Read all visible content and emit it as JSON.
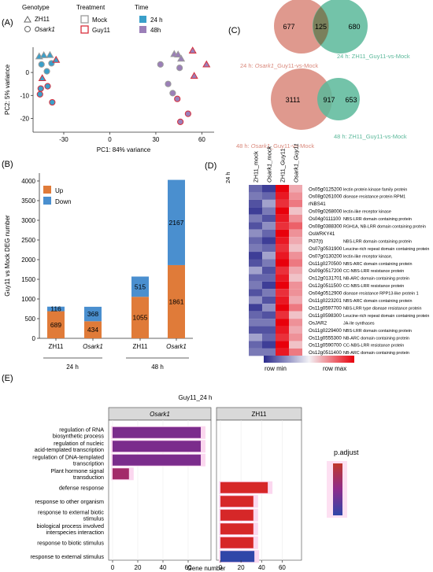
{
  "panels": {
    "A": "(A)",
    "B": "(B)",
    "C": "(C)",
    "D": "(D)",
    "E": "(E)"
  },
  "panelA": {
    "legend": {
      "genotype_title": "Genotype",
      "genotypes": [
        "ZH11",
        "Osark1"
      ],
      "treatment_title": "Treatment",
      "treatments": [
        "Mock",
        "Guy11"
      ],
      "time_title": "Time",
      "times": [
        "24 h",
        "48h"
      ],
      "time_colors": [
        "#3a9fc9",
        "#9b7fb8"
      ],
      "treatment_colors": [
        "#9a9a9a",
        "#d92f3c"
      ]
    },
    "chart_data": {
      "type": "scatter",
      "xlabel": "PC1: 84% variance",
      "ylabel": "PC2: 5% variance",
      "xlim": [
        -50,
        68
      ],
      "ylim": [
        -26,
        11
      ],
      "xticks": [
        -30,
        0,
        30,
        60
      ],
      "yticks": [
        0,
        -10,
        -20
      ],
      "points": [
        {
          "x": -46,
          "y": 7,
          "shape": "triangle",
          "fill": "#3a9fc9",
          "stroke": "#9a9a9a"
        },
        {
          "x": -43,
          "y": 7.5,
          "shape": "triangle",
          "fill": "#3a9fc9",
          "stroke": "#9a9a9a"
        },
        {
          "x": -39,
          "y": 7.6,
          "shape": "triangle",
          "fill": "#3a9fc9",
          "stroke": "#9a9a9a"
        },
        {
          "x": -44.5,
          "y": 3.5,
          "shape": "circle",
          "fill": "#3a9fc9",
          "stroke": "#9a9a9a"
        },
        {
          "x": -38,
          "y": 4,
          "shape": "circle",
          "fill": "#3a9fc9",
          "stroke": "#9a9a9a"
        },
        {
          "x": -41,
          "y": 0.5,
          "shape": "circle",
          "fill": "#3a9fc9",
          "stroke": "#9a9a9a"
        },
        {
          "x": -35,
          "y": 5.5,
          "shape": "triangle",
          "fill": "#3a9fc9",
          "stroke": "#d92f3c"
        },
        {
          "x": -44,
          "y": -2.5,
          "shape": "triangle",
          "fill": "#3a9fc9",
          "stroke": "#d92f3c"
        },
        {
          "x": -45,
          "y": -7,
          "shape": "circle",
          "fill": "#3a9fc9",
          "stroke": "#d92f3c"
        },
        {
          "x": -40.5,
          "y": -6,
          "shape": "circle",
          "fill": "#3a9fc9",
          "stroke": "#d92f3c"
        },
        {
          "x": -45.5,
          "y": -9.5,
          "shape": "circle",
          "fill": "#3a9fc9",
          "stroke": "#d92f3c"
        },
        {
          "x": -37.5,
          "y": -13,
          "shape": "circle",
          "fill": "#3a9fc9",
          "stroke": "#d92f3c"
        },
        {
          "x": 42,
          "y": 8,
          "shape": "triangle",
          "fill": "#9b7fb8",
          "stroke": "#9a9a9a"
        },
        {
          "x": 44.5,
          "y": 7.8,
          "shape": "triangle",
          "fill": "#9b7fb8",
          "stroke": "#9a9a9a"
        },
        {
          "x": 46.5,
          "y": 6,
          "shape": "triangle",
          "fill": "#9b7fb8",
          "stroke": "#9a9a9a"
        },
        {
          "x": 33,
          "y": 3.5,
          "shape": "circle",
          "fill": "#9b7fb8",
          "stroke": "#9a9a9a"
        },
        {
          "x": 45.5,
          "y": 2,
          "shape": "circle",
          "fill": "#9b7fb8",
          "stroke": "#9a9a9a"
        },
        {
          "x": 38,
          "y": -5,
          "shape": "circle",
          "fill": "#9b7fb8",
          "stroke": "#9a9a9a"
        },
        {
          "x": 41,
          "y": -9,
          "shape": "circle",
          "fill": "#9b7fb8",
          "stroke": "#9a9a9a"
        },
        {
          "x": 54,
          "y": 9.5,
          "shape": "triangle",
          "fill": "#9b7fb8",
          "stroke": "#d92f3c"
        },
        {
          "x": 63,
          "y": 3.5,
          "shape": "triangle",
          "fill": "#9b7fb8",
          "stroke": "#d92f3c"
        },
        {
          "x": 55,
          "y": -1.5,
          "shape": "triangle",
          "fill": "#9b7fb8",
          "stroke": "#d92f3c"
        },
        {
          "x": 44,
          "y": -11.5,
          "shape": "circle",
          "fill": "#9b7fb8",
          "stroke": "#d92f3c"
        },
        {
          "x": 51,
          "y": -18,
          "shape": "circle",
          "fill": "#9b7fb8",
          "stroke": "#d92f3c"
        },
        {
          "x": 46,
          "y": -21.5,
          "shape": "circle",
          "fill": "#9b7fb8",
          "stroke": "#d92f3c"
        }
      ]
    }
  },
  "panelB": {
    "legend": [
      {
        "label": "Up",
        "color": "#e07b39"
      },
      {
        "label": "Down",
        "color": "#4a8fcf"
      }
    ],
    "chart_data": {
      "type": "bar",
      "ylabel": "Guy11 vs Mock  DEG number",
      "ylim": [
        0,
        4200
      ],
      "yticks": [
        0,
        500,
        1000,
        1500,
        2000,
        2500,
        3000,
        3500,
        4000
      ],
      "categories": [
        "ZH11",
        "Osark1",
        "ZH11",
        "Osark1"
      ],
      "category_italic": [
        false,
        true,
        false,
        true
      ],
      "groups": [
        {
          "label": "24 h",
          "span": [
            0,
            1
          ]
        },
        {
          "label": "48 h",
          "span": [
            2,
            3
          ]
        }
      ],
      "series": [
        {
          "name": "Up",
          "values": [
            689,
            434,
            1055,
            1861
          ]
        },
        {
          "name": "Down",
          "values": [
            116,
            368,
            515,
            2167
          ]
        }
      ]
    }
  },
  "panelC": {
    "venns": [
      {
        "left_only": "677",
        "overlap": "125",
        "right_only": "680",
        "left_label_prefix": "24 h: ",
        "left_label_italic": "Osark1",
        "left_label_suffix": "_Guy11-vs-Mock",
        "right_label": "24 h: ZH11_Guy11-vs-Mock",
        "left_color": "#d9877a",
        "right_color": "#5bb89a"
      },
      {
        "left_only": "3111",
        "overlap": "917",
        "right_only": "653",
        "left_label_prefix": "48 h: ",
        "left_label_italic": "Osark1",
        "left_label_suffix": "_Guy11-vs-Mock",
        "right_label": "48 h: ZH11_Guy11-vs-Mock",
        "left_color": "#d9877a",
        "right_color": "#5bb89a"
      }
    ]
  },
  "panelD": {
    "time_label": "24 h",
    "columns": [
      "ZH11_mock",
      "Osark1_mock",
      "ZH11_Guy11",
      "Osark1_Guy11"
    ],
    "column_italic": [
      false,
      true,
      false,
      true
    ],
    "legend_min": "row min",
    "legend_max": "row max",
    "chart_data": {
      "type": "heatmap",
      "value_range": [
        0,
        1
      ],
      "rows": [
        {
          "gene": "Os05g0125200",
          "desc": "lectin protein kinase family protein",
          "values": [
            0.15,
            0.05,
            1.0,
            0.65
          ]
        },
        {
          "gene": "Os08g0261000",
          "desc": "disease resistance protein RPM1",
          "values": [
            0.2,
            0.15,
            0.95,
            0.7
          ]
        },
        {
          "gene": "rNBS41",
          "desc": "",
          "values": [
            0.1,
            0.3,
            0.9,
            0.75
          ]
        },
        {
          "gene": "Os09g0268000",
          "desc": "lectin-like receptor kinase",
          "values": [
            0.05,
            0.2,
            1.0,
            0.6
          ]
        },
        {
          "gene": "Os04g0111100",
          "desc": "NBS-LRR domain containing protein",
          "values": [
            0.2,
            0.1,
            0.95,
            0.7
          ]
        },
        {
          "gene": "Os08g0388300",
          "desc": "RGH1A, NB-LRR domain containing protein",
          "values": [
            0.1,
            0.25,
            0.9,
            0.8
          ]
        },
        {
          "gene": "OsWRKY41",
          "desc": "",
          "values": [
            0.25,
            0.15,
            1.0,
            0.7
          ]
        },
        {
          "gene": "Pi37(t)",
          "desc": "NBS-LRR domain containing protein",
          "values": [
            0.15,
            0.05,
            0.95,
            0.65
          ]
        },
        {
          "gene": "Os07g0531900",
          "desc": "Leucine-rich repeat domain containing protein",
          "values": [
            0.2,
            0.15,
            0.9,
            0.6
          ]
        },
        {
          "gene": "Os07g0130200",
          "desc": "lectin-like receptor kinase,",
          "values": [
            0.05,
            0.3,
            0.95,
            0.7
          ]
        },
        {
          "gene": "Os11g0270500",
          "desc": "NBS-ARC domain containing protein",
          "values": [
            0.1,
            0.2,
            1.0,
            0.75
          ]
        },
        {
          "gene": "Os09g0517200",
          "desc": "CC-NBS-LRR resistance protein",
          "values": [
            0.3,
            0.1,
            0.9,
            0.65
          ]
        },
        {
          "gene": "Os12g0131701",
          "desc": "NB-ARC domain containing protein",
          "values": [
            0.15,
            0.15,
            0.95,
            0.6
          ]
        },
        {
          "gene": "Os12g0511500",
          "desc": "CC-NBS-LRR resistance protein",
          "values": [
            0.2,
            0.05,
            1.0,
            0.7
          ]
        },
        {
          "gene": "Os04g0512900",
          "desc": "disease resistance RPP13-like protein 1",
          "values": [
            0.1,
            0.2,
            0.9,
            0.7
          ]
        },
        {
          "gene": "Os11g0223201",
          "desc": "NBS-ARC domain containing protein",
          "values": [
            0.25,
            0.1,
            0.95,
            0.65
          ]
        },
        {
          "gene": "Os11g0597700",
          "desc": "NBS-LRR type disease resistance protein",
          "values": [
            0.05,
            0.25,
            1.0,
            0.75
          ]
        },
        {
          "gene": "Os11g0598300",
          "desc": "Leucine-rich repeat domain containing protein",
          "values": [
            0.15,
            0.1,
            0.9,
            0.6
          ]
        },
        {
          "gene": "OsJAR2",
          "desc": "JA-Ile synthases",
          "values": [
            0.2,
            0.2,
            1.0,
            0.7
          ]
        },
        {
          "gene": "Os11g0229400",
          "desc": "NBS-LRR domain containing protein",
          "values": [
            0.1,
            0.1,
            0.95,
            0.65
          ]
        },
        {
          "gene": "Os11g0555300",
          "desc": "NB-ARC domain containing protein",
          "values": [
            0.3,
            0.15,
            0.9,
            0.7
          ]
        },
        {
          "gene": "Os11g0590700",
          "desc": "CC-NBS-LRR resistance protein",
          "values": [
            0.15,
            0.05,
            1.0,
            0.6
          ]
        },
        {
          "gene": "Os12g0511400",
          "desc": "NB-ARC domain containing protein",
          "values": [
            0.2,
            0.2,
            0.95,
            0.75
          ]
        }
      ]
    }
  },
  "panelE": {
    "title": "Guy11_24 h",
    "facets": [
      "Osark1",
      "ZH11"
    ],
    "facet_italic": [
      true,
      false
    ],
    "xlabel": "Gene number",
    "legend_title": "p.adjust",
    "chart_data": {
      "type": "bar",
      "orientation": "horizontal",
      "xlim": [
        0,
        75
      ],
      "xticks": [
        0,
        20,
        40,
        60
      ],
      "terms": [
        "regulation of RNA\nbiosynthetic process",
        "regulation of nucleic\nacid-templated transcription",
        "regulation of DNA-templated\ntranscription",
        "Plant hormone signal\ntransduction",
        "defense response",
        "response to other organism",
        "response to external biotic\nstimulus",
        "biological process involved\ninterspecies interaction",
        "response to biotic stimulus",
        "response to external stimulus"
      ],
      "series": [
        {
          "name": "Osark1",
          "values": [
            70,
            70,
            70,
            13,
            0,
            0,
            0,
            0,
            0,
            0
          ],
          "colors": [
            "#7b2c8c",
            "#7b2c8c",
            "#7b2c8c",
            "#a32a6a",
            null,
            null,
            null,
            null,
            null,
            null
          ]
        },
        {
          "name": "ZH11",
          "values": [
            0,
            0,
            0,
            0,
            46,
            32,
            32,
            32,
            32,
            33
          ],
          "colors": [
            null,
            null,
            null,
            null,
            "#d62728",
            "#d62728",
            "#d62728",
            "#d62728",
            "#d62728",
            "#2f46a8"
          ]
        }
      ]
    }
  }
}
